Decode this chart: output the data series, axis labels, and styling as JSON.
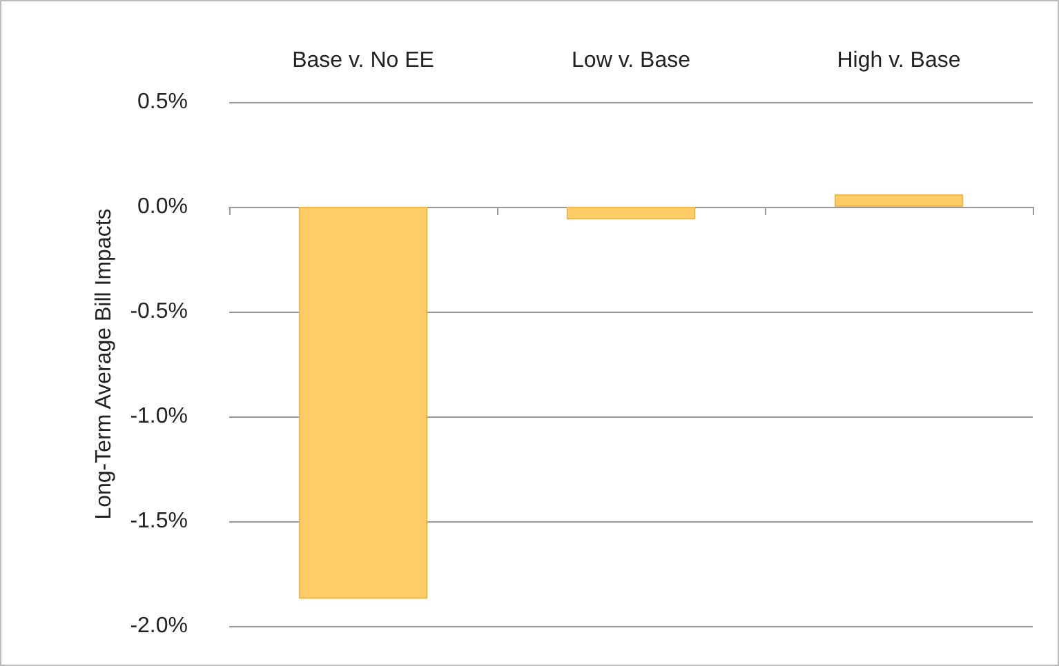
{
  "chart_data": {
    "type": "bar",
    "ylabel": "Long-Term Average Bill Impacts",
    "categories": [
      "Base v. No EE",
      "Low v. Base",
      "High v. Base"
    ],
    "series": [
      {
        "color": "#ffcc66",
        "values": [
          -1.87,
          -0.06,
          0.06
        ]
      }
    ],
    "ylim": [
      -2,
      0.5
    ],
    "yticks": [
      {
        "value": -2,
        "label": "-2.0%"
      },
      {
        "value": -1.5,
        "label": "-1.5%"
      },
      {
        "value": -1,
        "label": "-1.0%"
      },
      {
        "value": -0.5,
        "label": "-0.5%"
      },
      {
        "value": 0,
        "label": "0.0%"
      },
      {
        "value": 0.5,
        "label": "0.5%"
      }
    ],
    "grid": "y"
  }
}
